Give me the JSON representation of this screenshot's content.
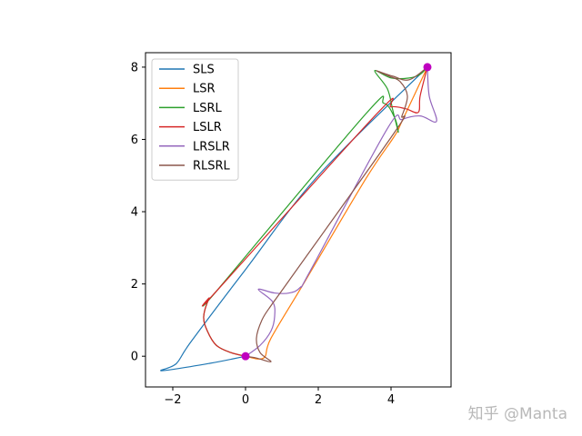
{
  "chart_data": {
    "type": "line",
    "title": "",
    "xlabel": "",
    "ylabel": "",
    "xlim": [
      -2.75,
      5.65
    ],
    "ylim": [
      -0.85,
      8.4
    ],
    "x_ticks": [
      -2,
      0,
      2,
      4
    ],
    "y_ticks": [
      0,
      2,
      4,
      6,
      8
    ],
    "grid": false,
    "legend_position": "top-left",
    "start_point": [
      0,
      0
    ],
    "goal_point": [
      5,
      8
    ],
    "marker_color": "#bf00bf",
    "series": [
      {
        "name": "SLS",
        "color": "#1f77b4",
        "points": [
          [
            0,
            0
          ],
          [
            -1,
            -0.2
          ],
          [
            -2.3,
            -0.4
          ],
          [
            -1.9,
            -0.2
          ],
          [
            -1.5,
            0.4
          ],
          [
            0,
            2.4
          ],
          [
            2,
            5
          ],
          [
            5,
            8
          ]
        ]
      },
      {
        "name": "LSR",
        "color": "#ff7f0e",
        "points": [
          [
            0,
            0
          ],
          [
            0.5,
            -0.05
          ],
          [
            0.7,
            0.5
          ],
          [
            1.65,
            2.1
          ],
          [
            3.3,
            4.9
          ],
          [
            4.1,
            6.1
          ],
          [
            4.3,
            6.5
          ],
          [
            5,
            8
          ]
        ]
      },
      {
        "name": "LSRL",
        "color": "#2ca02c",
        "points": [
          [
            0,
            0
          ],
          [
            -0.4,
            0.1
          ],
          [
            -0.8,
            0.3
          ],
          [
            -1.05,
            0.7
          ],
          [
            -1.15,
            1.1
          ],
          [
            -1,
            1.6
          ],
          [
            -0.8,
            1.8
          ],
          [
            3.3,
            6.7
          ],
          [
            3.8,
            7
          ],
          [
            4.1,
            6.6
          ],
          [
            4.2,
            6.2
          ],
          [
            4.05,
            6.8
          ],
          [
            3.9,
            7.4
          ],
          [
            3.55,
            7.9
          ],
          [
            4,
            7.7
          ],
          [
            4.5,
            7.7
          ],
          [
            4.8,
            7.8
          ],
          [
            5,
            8
          ]
        ]
      },
      {
        "name": "LSLR",
        "color": "#d62728",
        "points": [
          [
            0,
            0
          ],
          [
            -0.4,
            0.1
          ],
          [
            -0.8,
            0.3
          ],
          [
            -1.05,
            0.7
          ],
          [
            -1.15,
            1.1
          ],
          [
            -1,
            1.6
          ],
          [
            -0.8,
            1.8
          ],
          [
            3.6,
            6.7
          ],
          [
            4,
            6.9
          ],
          [
            4.4,
            6.85
          ],
          [
            4.75,
            6.75
          ],
          [
            4.8,
            7.2
          ],
          [
            5,
            8
          ]
        ]
      },
      {
        "name": "LRSLR",
        "color": "#9467bd",
        "points": [
          [
            0,
            0
          ],
          [
            0.4,
            0.3
          ],
          [
            0.7,
            0.7
          ],
          [
            0.8,
            1.1
          ],
          [
            0.75,
            1.5
          ],
          [
            0.35,
            1.85
          ],
          [
            0.8,
            1.75
          ],
          [
            1.2,
            1.75
          ],
          [
            1.5,
            1.9
          ],
          [
            1.8,
            2.4
          ],
          [
            3.9,
            6.3
          ],
          [
            4.3,
            6.55
          ],
          [
            4.8,
            6.65
          ],
          [
            5.25,
            6.5
          ],
          [
            5.05,
            7.2
          ],
          [
            5,
            8
          ]
        ]
      },
      {
        "name": "RLSRL",
        "color": "#8c564b",
        "points": [
          [
            0,
            0
          ],
          [
            0.3,
            -0.05
          ],
          [
            0.7,
            -0.15
          ],
          [
            0.4,
            0.1
          ],
          [
            0.3,
            0.5
          ],
          [
            0.45,
            1
          ],
          [
            0.7,
            1.4
          ],
          [
            1.2,
            2.1
          ],
          [
            4.1,
            6.2
          ],
          [
            4.3,
            6.65
          ],
          [
            4.45,
            7.2
          ],
          [
            4.25,
            7.6
          ],
          [
            3.95,
            7.75
          ],
          [
            3.6,
            7.9
          ],
          [
            4.05,
            7.75
          ],
          [
            4.5,
            7.65
          ],
          [
            5,
            8
          ]
        ]
      }
    ]
  },
  "watermark": "知乎 @Manta"
}
